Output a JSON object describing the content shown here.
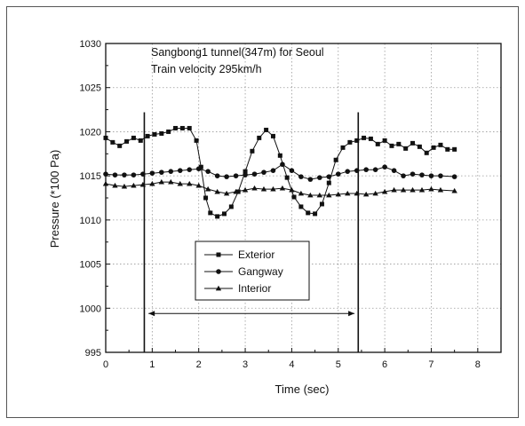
{
  "chart_data": {
    "type": "line",
    "annotations": [
      "Sangbong1 tunnel(347m) for Seoul",
      "Train velocity 295km/h"
    ],
    "xlabel": "Time (sec)",
    "ylabel": "Pressure (*100 Pa)",
    "xlim": [
      0,
      8.5
    ],
    "ylim": [
      995,
      1030
    ],
    "xticks": [
      0,
      1,
      2,
      3,
      4,
      5,
      6,
      7,
      8
    ],
    "yticks": [
      995,
      1000,
      1005,
      1010,
      1015,
      1020,
      1025,
      1030
    ],
    "grid": true,
    "legend_position": "center-left",
    "vertical_lines_x": [
      0.83,
      5.43
    ],
    "arrow_range": {
      "x_start": 0.92,
      "x_end": 5.35,
      "y": 999.4
    },
    "series": [
      {
        "name": "Exterior",
        "marker": "square",
        "x": [
          0,
          0.15,
          0.3,
          0.45,
          0.6,
          0.75,
          0.9,
          1.05,
          1.2,
          1.35,
          1.5,
          1.65,
          1.8,
          1.95,
          2.05,
          2.15,
          2.25,
          2.4,
          2.55,
          2.7,
          2.85,
          3.0,
          3.15,
          3.3,
          3.45,
          3.6,
          3.75,
          3.9,
          4.05,
          4.2,
          4.35,
          4.5,
          4.65,
          4.8,
          4.95,
          5.1,
          5.25,
          5.4,
          5.55,
          5.7,
          5.85,
          6.0,
          6.15,
          6.3,
          6.45,
          6.6,
          6.75,
          6.9,
          7.05,
          7.2,
          7.35,
          7.5
        ],
        "y": [
          1019.3,
          1018.8,
          1018.4,
          1018.9,
          1019.3,
          1019.0,
          1019.5,
          1019.7,
          1019.8,
          1020.0,
          1020.4,
          1020.4,
          1020.4,
          1019.0,
          1016.0,
          1012.5,
          1010.8,
          1010.4,
          1010.7,
          1011.5,
          1013.2,
          1015.5,
          1017.8,
          1019.3,
          1020.2,
          1019.5,
          1017.3,
          1014.8,
          1012.6,
          1011.5,
          1010.8,
          1010.7,
          1011.8,
          1014.2,
          1016.8,
          1018.2,
          1018.8,
          1019.0,
          1019.3,
          1019.2,
          1018.6,
          1019.0,
          1018.4,
          1018.6,
          1018.1,
          1018.7,
          1018.3,
          1017.6,
          1018.2,
          1018.5,
          1018.0,
          1018.0
        ]
      },
      {
        "name": "Gangway",
        "marker": "circle",
        "x": [
          0,
          0.2,
          0.4,
          0.6,
          0.8,
          1.0,
          1.2,
          1.4,
          1.6,
          1.8,
          2.0,
          2.2,
          2.4,
          2.6,
          2.8,
          3.0,
          3.2,
          3.4,
          3.6,
          3.8,
          4.0,
          4.2,
          4.4,
          4.6,
          4.8,
          5.0,
          5.2,
          5.4,
          5.6,
          5.8,
          6.0,
          6.2,
          6.4,
          6.6,
          6.8,
          7.0,
          7.2,
          7.5
        ],
        "y": [
          1015.2,
          1015.1,
          1015.1,
          1015.1,
          1015.2,
          1015.3,
          1015.4,
          1015.5,
          1015.6,
          1015.7,
          1015.8,
          1015.5,
          1015.0,
          1014.9,
          1015.0,
          1015.1,
          1015.2,
          1015.4,
          1015.6,
          1016.3,
          1015.6,
          1014.9,
          1014.6,
          1014.8,
          1014.9,
          1015.2,
          1015.5,
          1015.6,
          1015.7,
          1015.7,
          1016.0,
          1015.6,
          1015.0,
          1015.2,
          1015.1,
          1015.0,
          1015.0,
          1014.9
        ]
      },
      {
        "name": "Interior",
        "marker": "triangle",
        "x": [
          0,
          0.2,
          0.4,
          0.6,
          0.8,
          1.0,
          1.2,
          1.4,
          1.6,
          1.8,
          2.0,
          2.2,
          2.4,
          2.6,
          2.8,
          3.0,
          3.2,
          3.4,
          3.6,
          3.8,
          4.0,
          4.2,
          4.4,
          4.6,
          4.8,
          5.0,
          5.2,
          5.4,
          5.6,
          5.8,
          6.0,
          6.2,
          6.4,
          6.6,
          6.8,
          7.0,
          7.2,
          7.5
        ],
        "y": [
          1014.1,
          1013.9,
          1013.8,
          1013.9,
          1014.0,
          1014.1,
          1014.3,
          1014.3,
          1014.1,
          1014.1,
          1013.9,
          1013.5,
          1013.2,
          1013.0,
          1013.2,
          1013.4,
          1013.6,
          1013.5,
          1013.5,
          1013.6,
          1013.4,
          1013.0,
          1012.8,
          1012.8,
          1012.8,
          1012.9,
          1013.0,
          1013.0,
          1012.9,
          1013.0,
          1013.2,
          1013.4,
          1013.4,
          1013.4,
          1013.4,
          1013.5,
          1013.4,
          1013.3
        ]
      }
    ]
  }
}
